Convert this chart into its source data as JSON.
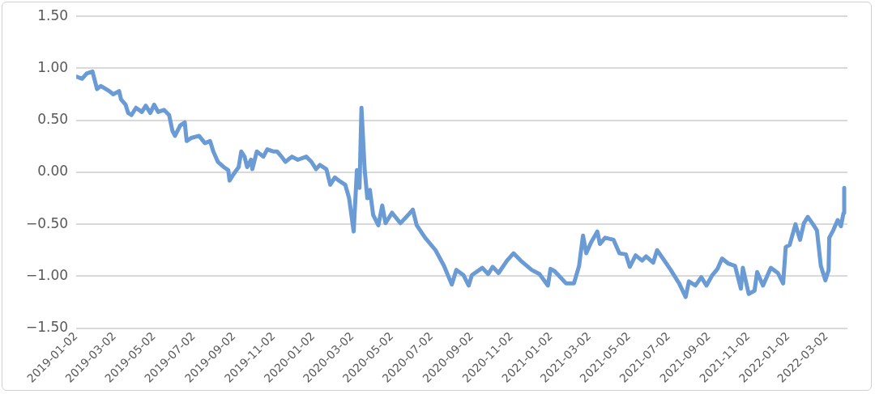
{
  "chart_data": {
    "type": "line",
    "color": "#6a9bd4",
    "marker": "none",
    "line_style": "solid",
    "grid": "y",
    "legend": false,
    "xlim": [
      "2019-01-02",
      "2022-04-03"
    ],
    "xticks": [
      "2019-01-02",
      "2019-03-02",
      "2019-05-02",
      "2019-07-02",
      "2019-09-02",
      "2019-11-02",
      "2020-01-02",
      "2020-03-02",
      "2020-05-02",
      "2020-07-02",
      "2020-09-02",
      "2020-11-02",
      "2021-01-02",
      "2021-03-02",
      "2021-05-02",
      "2021-07-02",
      "2021-09-02",
      "2021-11-02",
      "2022-01-02",
      "2022-03-02"
    ],
    "ylim": [
      -1.5,
      1.5
    ],
    "yticks": [
      {
        "value": -1.5,
        "label": "−1.50"
      },
      {
        "value": -1,
        "label": "−1.00"
      },
      {
        "value": -0.5,
        "label": "−0.50"
      },
      {
        "value": 0,
        "label": "0.00"
      },
      {
        "value": 0.5,
        "label": "0.50"
      },
      {
        "value": 1,
        "label": "1.00"
      },
      {
        "value": 1.5,
        "label": "1.50"
      }
    ],
    "x": [
      "2019-01-02",
      "2019-01-11",
      "2019-01-18",
      "2019-01-27",
      "2019-02-03",
      "2019-02-09",
      "2019-02-22",
      "2019-02-28",
      "2019-03-09",
      "2019-03-12",
      "2019-03-19",
      "2019-03-23",
      "2019-03-28",
      "2019-04-04",
      "2019-04-13",
      "2019-04-19",
      "2019-04-26",
      "2019-05-02",
      "2019-05-08",
      "2019-05-17",
      "2019-05-25",
      "2019-05-30",
      "2019-06-03",
      "2019-06-11",
      "2019-06-18",
      "2019-06-21",
      "2019-06-28",
      "2019-07-10",
      "2019-07-19",
      "2019-07-27",
      "2019-08-01",
      "2019-08-08",
      "2019-08-17",
      "2019-08-24",
      "2019-08-26",
      "2019-09-01",
      "2019-09-09",
      "2019-09-13",
      "2019-09-18",
      "2019-09-22",
      "2019-09-28",
      "2019-09-30",
      "2019-10-07",
      "2019-10-17",
      "2019-10-23",
      "2019-11-01",
      "2019-11-07",
      "2019-11-14",
      "2019-11-20",
      "2019-11-30",
      "2019-12-09",
      "2019-12-22",
      "2019-12-30",
      "2020-01-06",
      "2020-01-12",
      "2020-01-22",
      "2020-01-28",
      "2020-02-04",
      "2020-02-10",
      "2020-02-20",
      "2020-02-26",
      "2020-03-04",
      "2020-03-09",
      "2020-03-13",
      "2020-03-16",
      "2020-03-21",
      "2020-03-25",
      "2020-03-29",
      "2020-04-03",
      "2020-04-11",
      "2020-04-17",
      "2020-04-22",
      "2020-05-02",
      "2020-05-15",
      "2020-05-27",
      "2020-06-03",
      "2020-06-09",
      "2020-06-22",
      "2020-07-08",
      "2020-07-21",
      "2020-08-02",
      "2020-08-09",
      "2020-08-20",
      "2020-08-28",
      "2020-09-02",
      "2020-09-18",
      "2020-09-27",
      "2020-10-04",
      "2020-10-13",
      "2020-10-26",
      "2020-11-05",
      "2020-11-16",
      "2020-12-03",
      "2020-12-15",
      "2020-12-28",
      "2021-01-01",
      "2021-01-07",
      "2021-01-13",
      "2021-01-25",
      "2021-02-06",
      "2021-02-14",
      "2021-02-16",
      "2021-02-20",
      "2021-02-25",
      "2021-03-04",
      "2021-03-14",
      "2021-03-18",
      "2021-03-26",
      "2021-04-08",
      "2021-04-17",
      "2021-04-27",
      "2021-05-03",
      "2021-05-12",
      "2021-05-22",
      "2021-05-28",
      "2021-06-08",
      "2021-06-14",
      "2021-06-23",
      "2021-07-05",
      "2021-07-18",
      "2021-07-28",
      "2021-08-02",
      "2021-08-12",
      "2021-08-21",
      "2021-08-29",
      "2021-09-07",
      "2021-09-15",
      "2021-09-22",
      "2021-10-02",
      "2021-10-12",
      "2021-10-21",
      "2021-10-24",
      "2021-11-02",
      "2021-11-11",
      "2021-11-15",
      "2021-11-24",
      "2021-12-06",
      "2021-12-17",
      "2021-12-25",
      "2021-12-29",
      "2022-01-04",
      "2022-01-13",
      "2022-01-20",
      "2022-01-26",
      "2022-02-01",
      "2022-02-09",
      "2022-02-15",
      "2022-02-21",
      "2022-02-28",
      "2022-03-05",
      "2022-03-06",
      "2022-03-12",
      "2022-03-19",
      "2022-03-24",
      "2022-03-28",
      "2022-03-29"
    ],
    "values": [
      0.92,
      0.9,
      0.95,
      0.97,
      0.8,
      0.83,
      0.78,
      0.75,
      0.78,
      0.7,
      0.65,
      0.57,
      0.55,
      0.62,
      0.58,
      0.64,
      0.57,
      0.65,
      0.58,
      0.6,
      0.55,
      0.4,
      0.35,
      0.45,
      0.48,
      0.3,
      0.33,
      0.35,
      0.28,
      0.3,
      0.2,
      0.1,
      0.05,
      0.02,
      -0.08,
      -0.02,
      0.05,
      0.2,
      0.15,
      0.05,
      0.12,
      0.03,
      0.2,
      0.15,
      0.22,
      0.2,
      0.2,
      0.15,
      0.1,
      0.15,
      0.12,
      0.15,
      0.1,
      0.03,
      0.07,
      0.03,
      -0.12,
      -0.05,
      -0.08,
      -0.12,
      -0.25,
      -0.57,
      0.02,
      -0.15,
      0.62,
      0.02,
      -0.25,
      -0.17,
      -0.41,
      -0.51,
      -0.32,
      -0.49,
      -0.39,
      -0.49,
      -0.41,
      -0.36,
      -0.51,
      -0.63,
      -0.75,
      -0.9,
      -1.08,
      -0.94,
      -0.99,
      -1.09,
      -0.99,
      -0.92,
      -0.98,
      -0.91,
      -0.97,
      -0.85,
      -0.78,
      -0.85,
      -0.94,
      -0.98,
      -1.09,
      -0.93,
      -0.95,
      -0.99,
      -1.07,
      -1.07,
      -0.9,
      -0.8,
      -0.61,
      -0.78,
      -0.68,
      -0.57,
      -0.69,
      -0.63,
      -0.65,
      -0.78,
      -0.79,
      -0.91,
      -0.8,
      -0.85,
      -0.81,
      -0.87,
      -0.75,
      -0.83,
      -0.94,
      -1.07,
      -1.2,
      -1.05,
      -1.09,
      -1.01,
      -1.09,
      -0.99,
      -0.93,
      -0.83,
      -0.88,
      -0.9,
      -1.12,
      -0.92,
      -1.17,
      -1.14,
      -0.96,
      -1.09,
      -0.92,
      -0.97,
      -1.07,
      -0.72,
      -0.7,
      -0.5,
      -0.65,
      -0.49,
      -0.43,
      -0.5,
      -0.56,
      -0.9,
      -1.04,
      -0.94,
      -0.63,
      -0.56,
      -0.46,
      -0.52,
      -0.39,
      -0.15
    ]
  }
}
